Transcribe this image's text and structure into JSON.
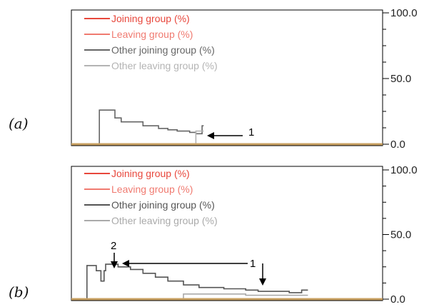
{
  "chart_data": [
    {
      "panel_label": "(a)",
      "type": "line",
      "ylim": [
        0,
        100
      ],
      "yticks": [
        {
          "value": 100,
          "label": "100.0"
        },
        {
          "value": 50,
          "label": "50.0"
        },
        {
          "value": 0,
          "label": "0.0"
        }
      ],
      "legend": [
        {
          "label": "Joining group (%)",
          "color": "#e8473c"
        },
        {
          "label": "Leaving group (%)",
          "color": "#f07a70"
        },
        {
          "label": "Other joining group (%)",
          "color": "#666666"
        },
        {
          "label": "Other leaving group (%)",
          "color": "#b4b4b4"
        }
      ],
      "baseline_color": "#c8a062",
      "series": [
        {
          "legend_index": 2,
          "x": [
            0.0,
            0.09,
            0.09,
            0.14,
            0.14,
            0.16,
            0.16,
            0.23,
            0.23,
            0.28,
            0.28,
            0.31,
            0.31,
            0.34,
            0.34,
            0.38,
            0.38,
            0.4,
            0.4,
            0.42,
            0.42,
            0.425
          ],
          "y": [
            0,
            0,
            26,
            26,
            20,
            20,
            17,
            17,
            14,
            14,
            12,
            12,
            11,
            11,
            10,
            10,
            9,
            9,
            8,
            8,
            14,
            14
          ]
        },
        {
          "legend_index": 3,
          "x": [
            0.0,
            0.4,
            0.4,
            0.425
          ],
          "y": [
            0,
            0,
            10,
            10
          ]
        }
      ],
      "annotations": [
        {
          "text": "1",
          "points_to": "end of 'Other joining group' trace"
        }
      ]
    },
    {
      "panel_label": "(b)",
      "type": "line",
      "ylim": [
        0,
        100
      ],
      "yticks": [
        {
          "value": 100,
          "label": "100.0"
        },
        {
          "value": 50,
          "label": "50.0"
        },
        {
          "value": 0,
          "label": "0.0"
        }
      ],
      "legend": [
        {
          "label": "Joining group (%)",
          "color": "#e8473c"
        },
        {
          "label": "Leaving group (%)",
          "color": "#f07a70"
        },
        {
          "label": "Other joining group (%)",
          "color": "#555555"
        },
        {
          "label": "Other leaving group (%)",
          "color": "#aaaaaa"
        }
      ],
      "baseline_color": "#c8a062",
      "series": [
        {
          "legend_index": 2,
          "x": [
            0.0,
            0.05,
            0.05,
            0.08,
            0.08,
            0.095,
            0.095,
            0.105,
            0.105,
            0.11,
            0.11,
            0.15,
            0.15,
            0.19,
            0.19,
            0.23,
            0.23,
            0.27,
            0.27,
            0.31,
            0.31,
            0.36,
            0.36,
            0.41,
            0.41,
            0.49,
            0.49,
            0.56,
            0.56,
            0.6,
            0.6,
            0.7,
            0.7,
            0.74,
            0.74,
            0.76
          ],
          "y": [
            0,
            0,
            26,
            26,
            22,
            22,
            14,
            14,
            22,
            22,
            27,
            27,
            25,
            25,
            23,
            23,
            20,
            20,
            17,
            17,
            14,
            14,
            11,
            11,
            9,
            9,
            8,
            8,
            7,
            7,
            6,
            6,
            5,
            5,
            7,
            7
          ]
        },
        {
          "legend_index": 3,
          "x": [
            0.0,
            0.36,
            0.36,
            0.56,
            0.56,
            0.76
          ],
          "y": [
            0,
            0,
            4,
            4,
            3,
            3
          ]
        }
      ],
      "annotations": [
        {
          "text": "2",
          "points_to": "dip in 'Other joining group' trace"
        },
        {
          "text": "1",
          "points_to": "step in 'Other leaving group' trace"
        }
      ]
    }
  ]
}
